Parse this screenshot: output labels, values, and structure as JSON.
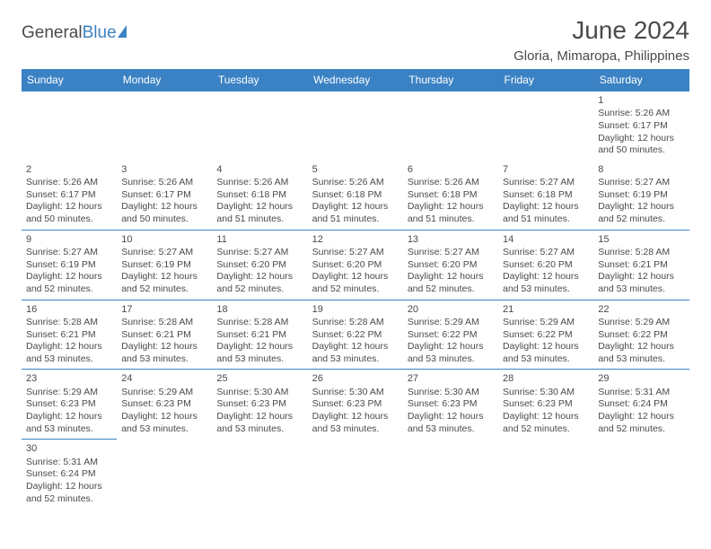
{
  "brand": {
    "part1": "General",
    "part2": "Blue"
  },
  "title": "June 2024",
  "location": "Gloria, Mimaropa, Philippines",
  "day_headers": [
    "Sunday",
    "Monday",
    "Tuesday",
    "Wednesday",
    "Thursday",
    "Friday",
    "Saturday"
  ],
  "colors": {
    "accent": "#3b82c4",
    "text": "#4a4a4a",
    "bg": "#ffffff"
  },
  "first_day_of_week_index": 6,
  "days": {
    "1": {
      "sunrise": "5:26 AM",
      "sunset": "6:17 PM",
      "daylight": "12 hours and 50 minutes."
    },
    "2": {
      "sunrise": "5:26 AM",
      "sunset": "6:17 PM",
      "daylight": "12 hours and 50 minutes."
    },
    "3": {
      "sunrise": "5:26 AM",
      "sunset": "6:17 PM",
      "daylight": "12 hours and 50 minutes."
    },
    "4": {
      "sunrise": "5:26 AM",
      "sunset": "6:18 PM",
      "daylight": "12 hours and 51 minutes."
    },
    "5": {
      "sunrise": "5:26 AM",
      "sunset": "6:18 PM",
      "daylight": "12 hours and 51 minutes."
    },
    "6": {
      "sunrise": "5:26 AM",
      "sunset": "6:18 PM",
      "daylight": "12 hours and 51 minutes."
    },
    "7": {
      "sunrise": "5:27 AM",
      "sunset": "6:18 PM",
      "daylight": "12 hours and 51 minutes."
    },
    "8": {
      "sunrise": "5:27 AM",
      "sunset": "6:19 PM",
      "daylight": "12 hours and 52 minutes."
    },
    "9": {
      "sunrise": "5:27 AM",
      "sunset": "6:19 PM",
      "daylight": "12 hours and 52 minutes."
    },
    "10": {
      "sunrise": "5:27 AM",
      "sunset": "6:19 PM",
      "daylight": "12 hours and 52 minutes."
    },
    "11": {
      "sunrise": "5:27 AM",
      "sunset": "6:20 PM",
      "daylight": "12 hours and 52 minutes."
    },
    "12": {
      "sunrise": "5:27 AM",
      "sunset": "6:20 PM",
      "daylight": "12 hours and 52 minutes."
    },
    "13": {
      "sunrise": "5:27 AM",
      "sunset": "6:20 PM",
      "daylight": "12 hours and 52 minutes."
    },
    "14": {
      "sunrise": "5:27 AM",
      "sunset": "6:20 PM",
      "daylight": "12 hours and 53 minutes."
    },
    "15": {
      "sunrise": "5:28 AM",
      "sunset": "6:21 PM",
      "daylight": "12 hours and 53 minutes."
    },
    "16": {
      "sunrise": "5:28 AM",
      "sunset": "6:21 PM",
      "daylight": "12 hours and 53 minutes."
    },
    "17": {
      "sunrise": "5:28 AM",
      "sunset": "6:21 PM",
      "daylight": "12 hours and 53 minutes."
    },
    "18": {
      "sunrise": "5:28 AM",
      "sunset": "6:21 PM",
      "daylight": "12 hours and 53 minutes."
    },
    "19": {
      "sunrise": "5:28 AM",
      "sunset": "6:22 PM",
      "daylight": "12 hours and 53 minutes."
    },
    "20": {
      "sunrise": "5:29 AM",
      "sunset": "6:22 PM",
      "daylight": "12 hours and 53 minutes."
    },
    "21": {
      "sunrise": "5:29 AM",
      "sunset": "6:22 PM",
      "daylight": "12 hours and 53 minutes."
    },
    "22": {
      "sunrise": "5:29 AM",
      "sunset": "6:22 PM",
      "daylight": "12 hours and 53 minutes."
    },
    "23": {
      "sunrise": "5:29 AM",
      "sunset": "6:23 PM",
      "daylight": "12 hours and 53 minutes."
    },
    "24": {
      "sunrise": "5:29 AM",
      "sunset": "6:23 PM",
      "daylight": "12 hours and 53 minutes."
    },
    "25": {
      "sunrise": "5:30 AM",
      "sunset": "6:23 PM",
      "daylight": "12 hours and 53 minutes."
    },
    "26": {
      "sunrise": "5:30 AM",
      "sunset": "6:23 PM",
      "daylight": "12 hours and 53 minutes."
    },
    "27": {
      "sunrise": "5:30 AM",
      "sunset": "6:23 PM",
      "daylight": "12 hours and 53 minutes."
    },
    "28": {
      "sunrise": "5:30 AM",
      "sunset": "6:23 PM",
      "daylight": "12 hours and 52 minutes."
    },
    "29": {
      "sunrise": "5:31 AM",
      "sunset": "6:24 PM",
      "daylight": "12 hours and 52 minutes."
    },
    "30": {
      "sunrise": "5:31 AM",
      "sunset": "6:24 PM",
      "daylight": "12 hours and 52 minutes."
    }
  },
  "labels": {
    "sunrise": "Sunrise: ",
    "sunset": "Sunset: ",
    "daylight": "Daylight: "
  }
}
